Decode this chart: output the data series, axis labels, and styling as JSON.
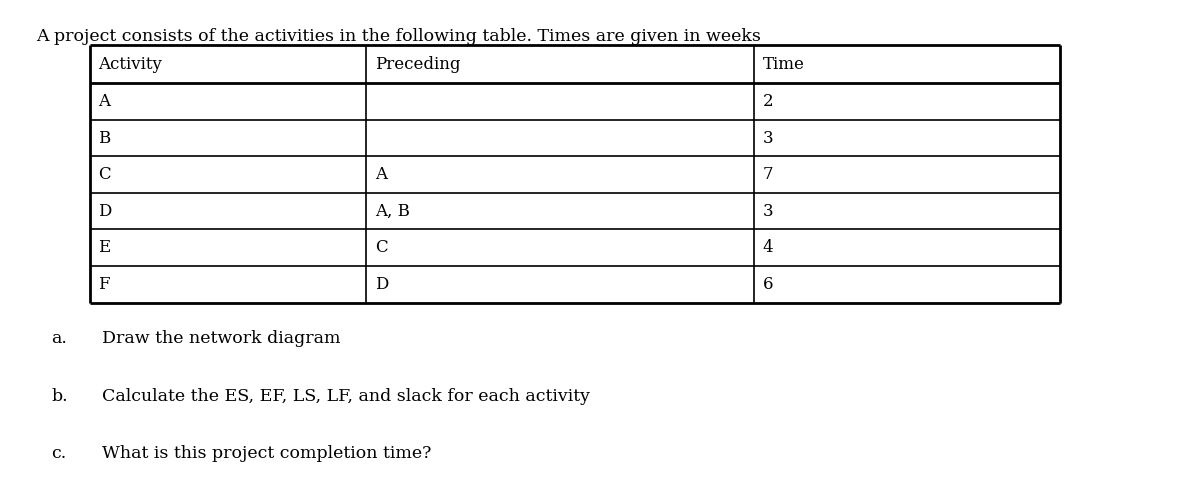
{
  "title": "A project consists of the activities in the following table. Times are given in weeks",
  "title_fontsize": 12.5,
  "table_headers": [
    "Activity",
    "Preceding",
    "Time"
  ],
  "table_rows": [
    [
      "A",
      "",
      "2"
    ],
    [
      "B",
      "",
      "3"
    ],
    [
      "C",
      "A",
      "7"
    ],
    [
      "D",
      "A, B",
      "3"
    ],
    [
      "E",
      "C",
      "4"
    ],
    [
      "F",
      "D",
      "6"
    ]
  ],
  "questions": [
    [
      "a.",
      "Draw the network diagram"
    ],
    [
      "b.",
      "Calculate the ES, EF, LS, LF, and slack for each activity"
    ],
    [
      "c.",
      "What is this project completion time?"
    ]
  ],
  "bg_color": "#ffffff",
  "text_color": "#000000",
  "cell_font_family": "DejaVu Serif",
  "question_font_family": "DejaVu Serif",
  "title_font_family": "DejaVu Serif",
  "cell_fontsize": 12.0,
  "question_fontsize": 12.5,
  "lw_outer": 2.0,
  "lw_inner": 1.2
}
